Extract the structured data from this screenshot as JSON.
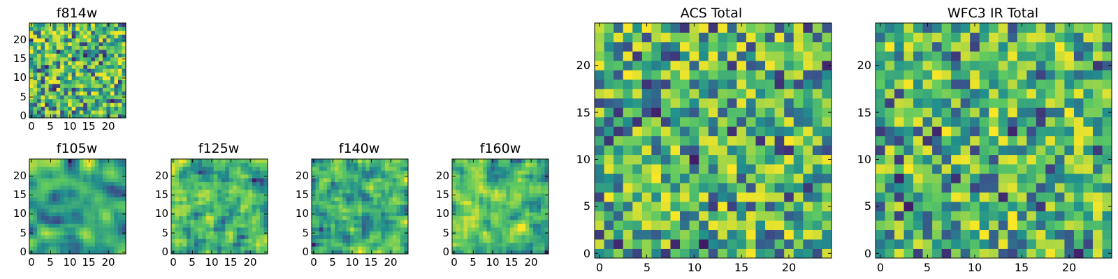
{
  "chart_data": [
    {
      "type": "heatmap",
      "title": "f814w",
      "size": 25,
      "seed": 11,
      "smooth": 0,
      "xticks": [
        "0",
        "5",
        "10",
        "15",
        "20"
      ],
      "yticks": [
        "0",
        "5",
        "10",
        "15",
        "20"
      ],
      "tick_values": [
        0,
        5,
        10,
        15,
        20
      ],
      "xlim": [
        -0.5,
        24.5
      ],
      "ylim": [
        -0.5,
        24.5
      ],
      "colormap": "viridis"
    },
    {
      "type": "heatmap",
      "title": "f105w",
      "size": 25,
      "seed": 23,
      "smooth": 2,
      "xticks": [
        "0",
        "5",
        "10",
        "15",
        "20"
      ],
      "yticks": [
        "0",
        "5",
        "10",
        "15",
        "20"
      ],
      "tick_values": [
        0,
        5,
        10,
        15,
        20
      ],
      "xlim": [
        -0.5,
        24.5
      ],
      "ylim": [
        -0.5,
        24.5
      ],
      "colormap": "viridis"
    },
    {
      "type": "heatmap",
      "title": "f125w",
      "size": 25,
      "seed": 37,
      "smooth": 1,
      "xticks": [
        "0",
        "5",
        "10",
        "15",
        "20"
      ],
      "yticks": [
        "0",
        "5",
        "10",
        "15",
        "20"
      ],
      "tick_values": [
        0,
        5,
        10,
        15,
        20
      ],
      "xlim": [
        -0.5,
        24.5
      ],
      "ylim": [
        -0.5,
        24.5
      ],
      "colormap": "viridis"
    },
    {
      "type": "heatmap",
      "title": "f140w",
      "size": 25,
      "seed": 41,
      "smooth": 1,
      "xticks": [
        "0",
        "5",
        "10",
        "15",
        "20"
      ],
      "yticks": [
        "0",
        "5",
        "10",
        "15",
        "20"
      ],
      "tick_values": [
        0,
        5,
        10,
        15,
        20
      ],
      "xlim": [
        -0.5,
        24.5
      ],
      "ylim": [
        -0.5,
        24.5
      ],
      "colormap": "viridis"
    },
    {
      "type": "heatmap",
      "title": "f160w",
      "size": 25,
      "seed": 53,
      "smooth": 1,
      "xticks": [
        "0",
        "5",
        "10",
        "15",
        "20"
      ],
      "yticks": [
        "0",
        "5",
        "10",
        "15",
        "20"
      ],
      "tick_values": [
        0,
        5,
        10,
        15,
        20
      ],
      "xlim": [
        -0.5,
        24.5
      ],
      "ylim": [
        -0.5,
        24.5
      ],
      "colormap": "viridis"
    },
    {
      "type": "heatmap",
      "title": "ACS Total",
      "size": 25,
      "seed": 67,
      "smooth": 0,
      "xticks": [
        "0",
        "5",
        "10",
        "15",
        "20"
      ],
      "yticks": [
        "0",
        "5",
        "10",
        "15",
        "20"
      ],
      "tick_values": [
        0,
        5,
        10,
        15,
        20
      ],
      "xlim": [
        -0.5,
        24.5
      ],
      "ylim": [
        -0.5,
        24.5
      ],
      "colormap": "viridis"
    },
    {
      "type": "heatmap",
      "title": "WFC3 IR Total",
      "size": 25,
      "seed": 79,
      "smooth": 0,
      "xticks": [
        "0",
        "5",
        "10",
        "15",
        "20"
      ],
      "yticks": [
        "0",
        "5",
        "10",
        "15",
        "20"
      ],
      "tick_values": [
        0,
        5,
        10,
        15,
        20
      ],
      "xlim": [
        -0.5,
        24.5
      ],
      "ylim": [
        -0.5,
        24.5
      ],
      "colormap": "viridis"
    }
  ],
  "colors": {
    "viridis_stops": [
      "#440154",
      "#3b528b",
      "#21908d",
      "#5dc962",
      "#fde725"
    ],
    "axis": "#000000",
    "background": "#ffffff"
  }
}
